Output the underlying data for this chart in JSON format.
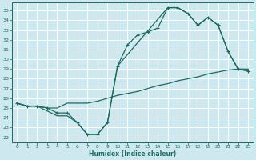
{
  "xlabel": "Humidex (Indice chaleur)",
  "bg_color": "#cde8ee",
  "grid_color": "#ffffff",
  "line_color": "#1a6b60",
  "xlim": [
    -0.5,
    23.5
  ],
  "ylim": [
    21.5,
    35.8
  ],
  "yticks": [
    22,
    23,
    24,
    25,
    26,
    27,
    28,
    29,
    30,
    31,
    32,
    33,
    34,
    35
  ],
  "xticks": [
    0,
    1,
    2,
    3,
    4,
    5,
    6,
    7,
    8,
    9,
    10,
    11,
    12,
    13,
    14,
    15,
    16,
    17,
    18,
    19,
    20,
    21,
    22,
    23
  ],
  "line1_x": [
    0,
    1,
    2,
    3,
    4,
    5,
    6,
    7,
    8,
    9,
    10,
    11,
    12,
    13,
    14,
    15,
    16,
    17,
    18,
    19,
    20,
    21,
    22,
    23
  ],
  "line1_y": [
    25.5,
    25.2,
    25.2,
    25.0,
    24.5,
    24.5,
    23.5,
    22.3,
    22.3,
    23.5,
    29.3,
    31.5,
    32.5,
    32.8,
    33.2,
    35.3,
    35.3,
    34.7,
    33.5,
    34.3,
    33.5,
    30.8,
    29.0,
    28.8
  ],
  "line2_x": [
    0,
    1,
    2,
    3,
    4,
    5,
    6,
    7,
    8,
    9,
    10,
    11,
    12,
    13,
    14,
    15,
    16,
    17,
    18,
    19,
    20,
    21,
    22,
    23
  ],
  "line2_y": [
    25.5,
    25.2,
    25.2,
    25.0,
    25.0,
    25.5,
    25.5,
    25.5,
    25.7,
    26.0,
    26.3,
    26.5,
    26.7,
    27.0,
    27.3,
    27.5,
    27.8,
    28.0,
    28.2,
    28.5,
    28.7,
    28.9,
    29.0,
    29.0
  ],
  "line3_x": [
    0,
    1,
    2,
    3,
    4,
    5,
    6,
    7,
    8,
    9,
    10,
    15,
    16,
    17,
    18,
    19,
    20,
    21,
    22,
    23
  ],
  "line3_y": [
    25.5,
    25.2,
    25.2,
    24.7,
    24.2,
    24.2,
    23.5,
    22.3,
    22.3,
    23.5,
    29.3,
    35.3,
    35.3,
    34.7,
    33.5,
    34.3,
    33.5,
    30.8,
    29.0,
    28.8
  ]
}
